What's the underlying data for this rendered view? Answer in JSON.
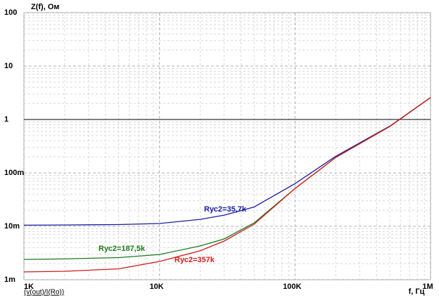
{
  "chart_data": {
    "type": "line",
    "title": "Z(f), Ом",
    "x_label": "f, Гц",
    "trace_label": "(v(out)/I(Ro))",
    "log_x": true,
    "log_y": true,
    "grid": true,
    "hline": 1,
    "xlim": [
      1000,
      1000000
    ],
    "ylim": [
      0.001,
      100
    ],
    "xticks": [
      {
        "value": 1000,
        "label": "1K"
      },
      {
        "value": 10000,
        "label": "10K"
      },
      {
        "value": 100000,
        "label": "100K"
      },
      {
        "value": 1000000,
        "label": "1M"
      }
    ],
    "yticks": [
      {
        "value": 0.001,
        "label": "1m"
      },
      {
        "value": 0.01,
        "label": "10m"
      },
      {
        "value": 0.1,
        "label": "100m"
      },
      1,
      10,
      100
    ],
    "series": [
      {
        "name": "Rус2=35,7k",
        "color": "#1a1aa6",
        "x": [
          1000,
          2000,
          5000,
          10000,
          20000,
          30000,
          50000,
          100000,
          200000,
          500000,
          1000000
        ],
        "values": [
          0.0105,
          0.0106,
          0.0108,
          0.0113,
          0.0135,
          0.0162,
          0.023,
          0.063,
          0.205,
          0.75,
          2.57
        ]
      },
      {
        "name": "Rус2=187,5k",
        "color": "#1a7a1a",
        "x": [
          1000,
          2000,
          5000,
          10000,
          20000,
          30000,
          50000,
          100000,
          200000,
          500000,
          1000000
        ],
        "values": [
          0.0024,
          0.00245,
          0.0026,
          0.00297,
          0.0043,
          0.0058,
          0.0116,
          0.051,
          0.195,
          0.74,
          2.57
        ]
      },
      {
        "name": "Rус2=357k",
        "color": "#d11a1a",
        "x": [
          1000,
          2000,
          5000,
          10000,
          20000,
          30000,
          50000,
          100000,
          200000,
          500000,
          1000000
        ],
        "values": [
          0.0014,
          0.00144,
          0.0016,
          0.0022,
          0.0035,
          0.0053,
          0.011,
          0.051,
          0.195,
          0.74,
          2.57
        ]
      }
    ]
  }
}
